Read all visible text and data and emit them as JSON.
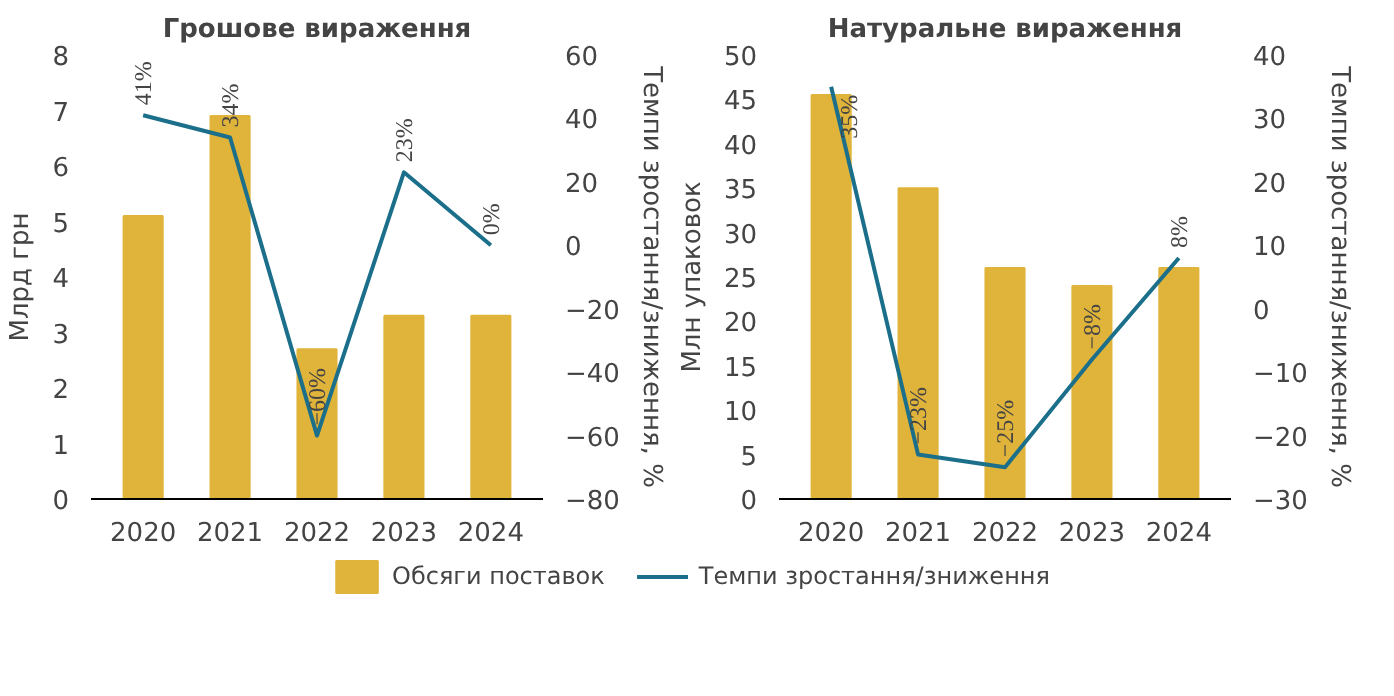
{
  "chart_data": [
    {
      "type": "bar",
      "title": "Грошове вираження",
      "categories": [
        "2020",
        "2021",
        "2022",
        "2023",
        "2024"
      ],
      "ylabel": "Млрд грн",
      "y2label": "Темпи зростання/зниження, %",
      "ylim": [
        0,
        8
      ],
      "yticks": [
        0,
        1,
        2,
        3,
        4,
        5,
        6,
        7,
        8
      ],
      "y2lim": [
        -80,
        60
      ],
      "y2ticks": [
        -80,
        -60,
        -40,
        -20,
        0,
        20,
        40,
        60
      ],
      "grid": false,
      "legend": "bottom",
      "series": [
        {
          "name": "Обсяги поставок",
          "color": "#e0b43a",
          "values": [
            5.1,
            6.9,
            2.7,
            3.3,
            3.3
          ]
        },
        {
          "name": "Темпи зростання/зниження",
          "type": "line",
          "axis": "y2",
          "color": "#1b6f8a",
          "values": [
            41,
            34,
            -60,
            23,
            0
          ],
          "value_labels": [
            "41%",
            "34%",
            "−60%",
            "23%",
            "0%"
          ]
        }
      ]
    },
    {
      "type": "bar",
      "title": "Натуральне вираження",
      "categories": [
        "2020",
        "2021",
        "2022",
        "2023",
        "2024"
      ],
      "ylabel": "Млн упаковок",
      "y2label": "Темпи зростання/зниження, %",
      "ylim": [
        0,
        50
      ],
      "yticks": [
        0,
        5,
        10,
        15,
        20,
        25,
        30,
        35,
        40,
        45,
        50
      ],
      "y2lim": [
        -30,
        40
      ],
      "y2ticks": [
        -30,
        -20,
        -10,
        0,
        10,
        20,
        30,
        40
      ],
      "grid": false,
      "series": [
        {
          "color": "#e0b43a",
          "values": [
            45.5,
            35,
            26,
            24,
            26
          ]
        },
        {
          "type": "line",
          "axis": "y2",
          "color": "#1b6f8a",
          "values": [
            35,
            -23,
            -25,
            -8,
            8
          ],
          "value_labels": [
            "35%",
            "−23%",
            "−25%",
            "−8%",
            "8%"
          ]
        }
      ]
    }
  ]
}
